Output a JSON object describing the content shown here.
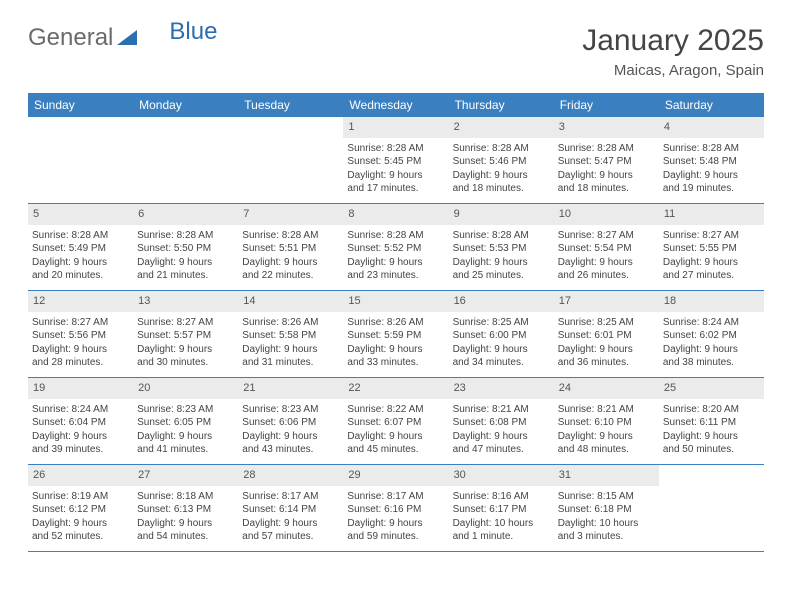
{
  "brand": {
    "part1": "General",
    "part2": "Blue"
  },
  "title": "January 2025",
  "location": "Maicas, Aragon, Spain",
  "colors": {
    "header_bg": "#3a7fbf",
    "header_text": "#ffffff",
    "daynum_bg": "#ebebeb",
    "border": "#3a7fbf",
    "brand_gray": "#6b6b6b",
    "brand_blue": "#2b6fb0"
  },
  "day_names": [
    "Sunday",
    "Monday",
    "Tuesday",
    "Wednesday",
    "Thursday",
    "Friday",
    "Saturday"
  ],
  "weeks": [
    [
      {
        "empty": true
      },
      {
        "empty": true
      },
      {
        "empty": true
      },
      {
        "num": "1",
        "sunrise": "Sunrise: 8:28 AM",
        "sunset": "Sunset: 5:45 PM",
        "day1": "Daylight: 9 hours",
        "day2": "and 17 minutes."
      },
      {
        "num": "2",
        "sunrise": "Sunrise: 8:28 AM",
        "sunset": "Sunset: 5:46 PM",
        "day1": "Daylight: 9 hours",
        "day2": "and 18 minutes."
      },
      {
        "num": "3",
        "sunrise": "Sunrise: 8:28 AM",
        "sunset": "Sunset: 5:47 PM",
        "day1": "Daylight: 9 hours",
        "day2": "and 18 minutes."
      },
      {
        "num": "4",
        "sunrise": "Sunrise: 8:28 AM",
        "sunset": "Sunset: 5:48 PM",
        "day1": "Daylight: 9 hours",
        "day2": "and 19 minutes."
      }
    ],
    [
      {
        "num": "5",
        "sunrise": "Sunrise: 8:28 AM",
        "sunset": "Sunset: 5:49 PM",
        "day1": "Daylight: 9 hours",
        "day2": "and 20 minutes."
      },
      {
        "num": "6",
        "sunrise": "Sunrise: 8:28 AM",
        "sunset": "Sunset: 5:50 PM",
        "day1": "Daylight: 9 hours",
        "day2": "and 21 minutes."
      },
      {
        "num": "7",
        "sunrise": "Sunrise: 8:28 AM",
        "sunset": "Sunset: 5:51 PM",
        "day1": "Daylight: 9 hours",
        "day2": "and 22 minutes."
      },
      {
        "num": "8",
        "sunrise": "Sunrise: 8:28 AM",
        "sunset": "Sunset: 5:52 PM",
        "day1": "Daylight: 9 hours",
        "day2": "and 23 minutes."
      },
      {
        "num": "9",
        "sunrise": "Sunrise: 8:28 AM",
        "sunset": "Sunset: 5:53 PM",
        "day1": "Daylight: 9 hours",
        "day2": "and 25 minutes."
      },
      {
        "num": "10",
        "sunrise": "Sunrise: 8:27 AM",
        "sunset": "Sunset: 5:54 PM",
        "day1": "Daylight: 9 hours",
        "day2": "and 26 minutes."
      },
      {
        "num": "11",
        "sunrise": "Sunrise: 8:27 AM",
        "sunset": "Sunset: 5:55 PM",
        "day1": "Daylight: 9 hours",
        "day2": "and 27 minutes."
      }
    ],
    [
      {
        "num": "12",
        "sunrise": "Sunrise: 8:27 AM",
        "sunset": "Sunset: 5:56 PM",
        "day1": "Daylight: 9 hours",
        "day2": "and 28 minutes."
      },
      {
        "num": "13",
        "sunrise": "Sunrise: 8:27 AM",
        "sunset": "Sunset: 5:57 PM",
        "day1": "Daylight: 9 hours",
        "day2": "and 30 minutes."
      },
      {
        "num": "14",
        "sunrise": "Sunrise: 8:26 AM",
        "sunset": "Sunset: 5:58 PM",
        "day1": "Daylight: 9 hours",
        "day2": "and 31 minutes."
      },
      {
        "num": "15",
        "sunrise": "Sunrise: 8:26 AM",
        "sunset": "Sunset: 5:59 PM",
        "day1": "Daylight: 9 hours",
        "day2": "and 33 minutes."
      },
      {
        "num": "16",
        "sunrise": "Sunrise: 8:25 AM",
        "sunset": "Sunset: 6:00 PM",
        "day1": "Daylight: 9 hours",
        "day2": "and 34 minutes."
      },
      {
        "num": "17",
        "sunrise": "Sunrise: 8:25 AM",
        "sunset": "Sunset: 6:01 PM",
        "day1": "Daylight: 9 hours",
        "day2": "and 36 minutes."
      },
      {
        "num": "18",
        "sunrise": "Sunrise: 8:24 AM",
        "sunset": "Sunset: 6:02 PM",
        "day1": "Daylight: 9 hours",
        "day2": "and 38 minutes."
      }
    ],
    [
      {
        "num": "19",
        "sunrise": "Sunrise: 8:24 AM",
        "sunset": "Sunset: 6:04 PM",
        "day1": "Daylight: 9 hours",
        "day2": "and 39 minutes."
      },
      {
        "num": "20",
        "sunrise": "Sunrise: 8:23 AM",
        "sunset": "Sunset: 6:05 PM",
        "day1": "Daylight: 9 hours",
        "day2": "and 41 minutes."
      },
      {
        "num": "21",
        "sunrise": "Sunrise: 8:23 AM",
        "sunset": "Sunset: 6:06 PM",
        "day1": "Daylight: 9 hours",
        "day2": "and 43 minutes."
      },
      {
        "num": "22",
        "sunrise": "Sunrise: 8:22 AM",
        "sunset": "Sunset: 6:07 PM",
        "day1": "Daylight: 9 hours",
        "day2": "and 45 minutes."
      },
      {
        "num": "23",
        "sunrise": "Sunrise: 8:21 AM",
        "sunset": "Sunset: 6:08 PM",
        "day1": "Daylight: 9 hours",
        "day2": "and 47 minutes."
      },
      {
        "num": "24",
        "sunrise": "Sunrise: 8:21 AM",
        "sunset": "Sunset: 6:10 PM",
        "day1": "Daylight: 9 hours",
        "day2": "and 48 minutes."
      },
      {
        "num": "25",
        "sunrise": "Sunrise: 8:20 AM",
        "sunset": "Sunset: 6:11 PM",
        "day1": "Daylight: 9 hours",
        "day2": "and 50 minutes."
      }
    ],
    [
      {
        "num": "26",
        "sunrise": "Sunrise: 8:19 AM",
        "sunset": "Sunset: 6:12 PM",
        "day1": "Daylight: 9 hours",
        "day2": "and 52 minutes."
      },
      {
        "num": "27",
        "sunrise": "Sunrise: 8:18 AM",
        "sunset": "Sunset: 6:13 PM",
        "day1": "Daylight: 9 hours",
        "day2": "and 54 minutes."
      },
      {
        "num": "28",
        "sunrise": "Sunrise: 8:17 AM",
        "sunset": "Sunset: 6:14 PM",
        "day1": "Daylight: 9 hours",
        "day2": "and 57 minutes."
      },
      {
        "num": "29",
        "sunrise": "Sunrise: 8:17 AM",
        "sunset": "Sunset: 6:16 PM",
        "day1": "Daylight: 9 hours",
        "day2": "and 59 minutes."
      },
      {
        "num": "30",
        "sunrise": "Sunrise: 8:16 AM",
        "sunset": "Sunset: 6:17 PM",
        "day1": "Daylight: 10 hours",
        "day2": "and 1 minute."
      },
      {
        "num": "31",
        "sunrise": "Sunrise: 8:15 AM",
        "sunset": "Sunset: 6:18 PM",
        "day1": "Daylight: 10 hours",
        "day2": "and 3 minutes."
      },
      {
        "empty": true
      }
    ]
  ]
}
